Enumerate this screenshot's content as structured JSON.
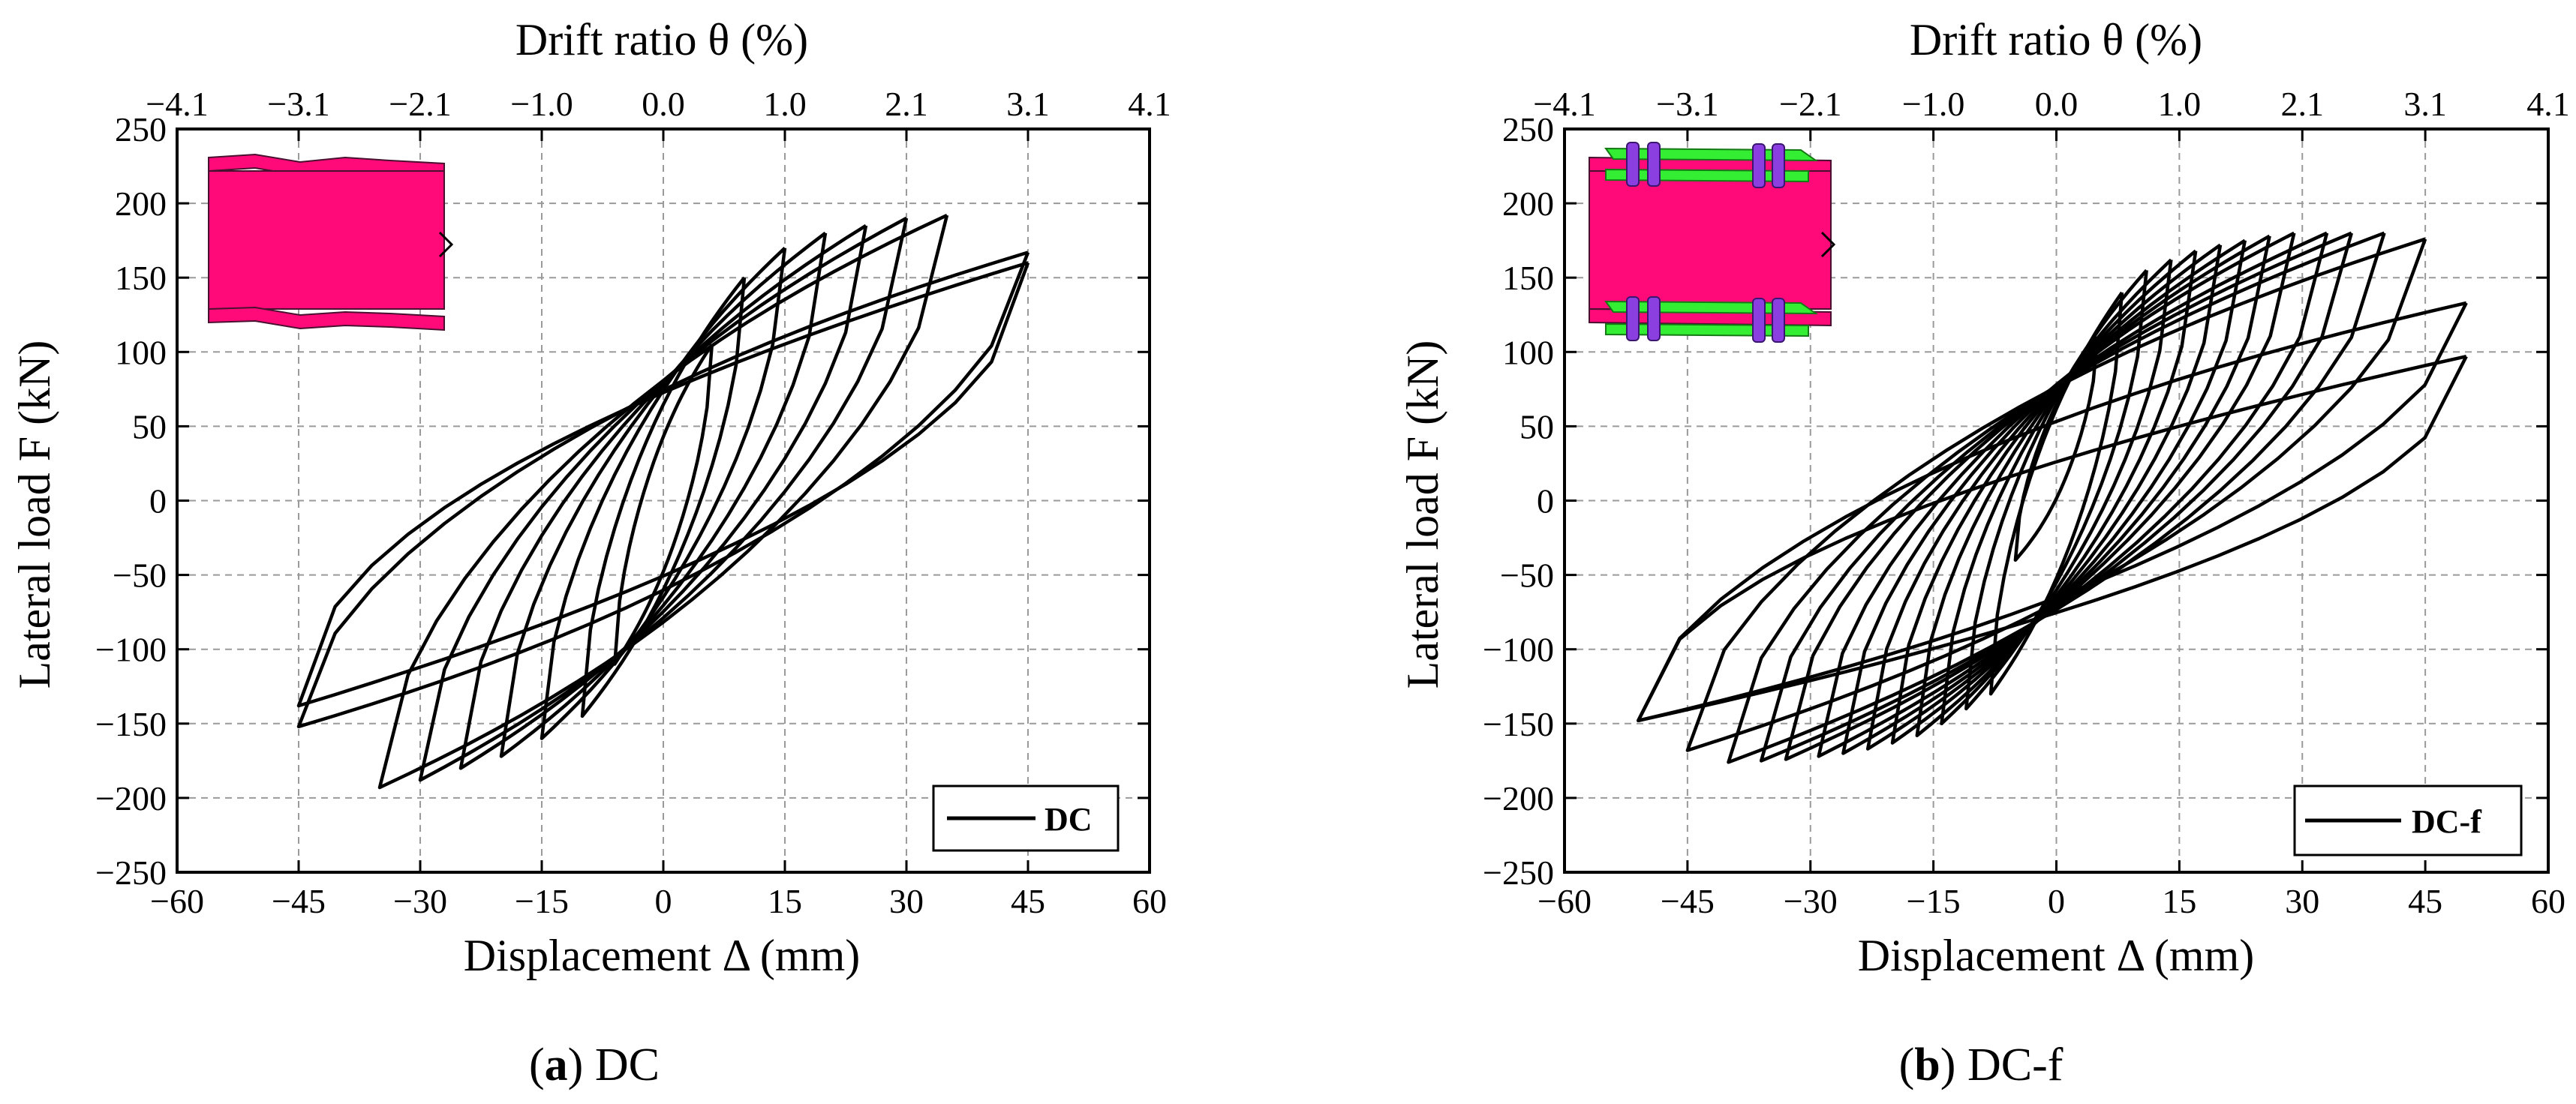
{
  "chart_data": [
    {
      "type": "line",
      "panel_letter": "a",
      "panel_name": "DC",
      "title": "",
      "xlabel": "Displacement Δ (mm)",
      "ylabel": "Lateral load F (kN)",
      "x2label": "Drift ratio θ (%)",
      "xlim": [
        -60,
        60
      ],
      "ylim": [
        -250,
        250
      ],
      "x_ticks": [
        -60,
        -45,
        -30,
        -15,
        0,
        15,
        30,
        45,
        60
      ],
      "y_ticks": [
        -250,
        -200,
        -150,
        -100,
        -50,
        0,
        50,
        100,
        150,
        200,
        250
      ],
      "top_ticks": [
        "-4.1",
        "-3.1",
        "-2.1",
        "-1.0",
        "0.0",
        "1.0",
        "2.1",
        "3.1",
        "4.1"
      ],
      "grid": true,
      "legend": {
        "label": "DC",
        "position": "bottom-right"
      },
      "inset": "pink-i-beam-specimen",
      "series": [
        {
          "name": "DC",
          "peak_positive": [
            [
              6,
              105
            ],
            [
              10,
              150
            ],
            [
              15,
              170
            ],
            [
              20,
              180
            ],
            [
              25,
              185
            ],
            [
              30,
              190
            ],
            [
              35,
              192
            ],
            [
              45,
              167
            ]
          ],
          "peak_negative": [
            [
              -6,
              -110
            ],
            [
              -10,
              -145
            ],
            [
              -15,
              -160
            ],
            [
              -20,
              -172
            ],
            [
              -25,
              -180
            ],
            [
              -30,
              -188
            ],
            [
              -35,
              -193
            ],
            [
              -45,
              -152
            ]
          ],
          "final_cycle": {
            "x_max": 45,
            "y_at_x_max": 160,
            "x_min": -45,
            "y_at_x_min": -138
          }
        }
      ]
    },
    {
      "type": "line",
      "panel_letter": "b",
      "panel_name": "DC-f",
      "title": "",
      "xlabel": "Displacement Δ (mm)",
      "ylabel": "Lateral load F (kN)",
      "x2label": "Drift ratio θ (%)",
      "xlim": [
        -60,
        60
      ],
      "ylim": [
        -250,
        250
      ],
      "x_ticks": [
        -60,
        -45,
        -30,
        -15,
        0,
        15,
        30,
        45,
        60
      ],
      "y_ticks": [
        -250,
        -200,
        -150,
        -100,
        -50,
        0,
        50,
        100,
        150,
        200,
        250
      ],
      "top_ticks": [
        "-4.1",
        "-3.1",
        "-2.1",
        "-1.0",
        "0.0",
        "1.0",
        "2.1",
        "3.1",
        "4.1"
      ],
      "grid": true,
      "legend": {
        "label": "DC-f",
        "position": "bottom-right"
      },
      "inset": "pink-i-beam-with-green-flange-plates-and-bolts",
      "series": [
        {
          "name": "DC-f",
          "peak_positive": [
            [
              5,
              110
            ],
            [
              8,
              140
            ],
            [
              11,
              155
            ],
            [
              14,
              162
            ],
            [
              17,
              168
            ],
            [
              20,
              172
            ],
            [
              23,
              175
            ],
            [
              26,
              178
            ],
            [
              29,
              180
            ],
            [
              33,
              180
            ],
            [
              36,
              180
            ],
            [
              40,
              180
            ],
            [
              45,
              176
            ],
            [
              50,
              133
            ]
          ],
          "peak_negative": [
            [
              -5,
              -40
            ],
            [
              -8,
              -130
            ],
            [
              -11,
              -140
            ],
            [
              -14,
              -150
            ],
            [
              -17,
              -158
            ],
            [
              -20,
              -163
            ],
            [
              -23,
              -167
            ],
            [
              -26,
              -170
            ],
            [
              -29,
              -172
            ],
            [
              -33,
              -174
            ],
            [
              -36,
              -175
            ],
            [
              -40,
              -176
            ],
            [
              -45,
              -168
            ],
            [
              -51,
              -148
            ]
          ],
          "final_cycle": {
            "x_max": 50,
            "y_at_x_max": 97,
            "x_min": -51,
            "y_at_x_min": -148
          }
        }
      ]
    }
  ]
}
